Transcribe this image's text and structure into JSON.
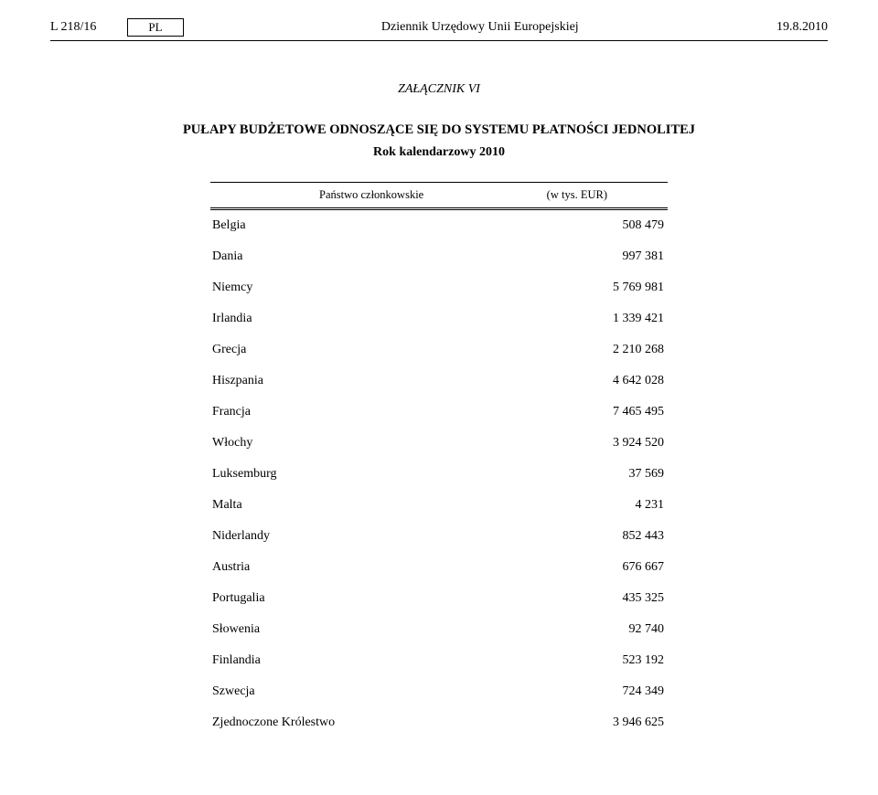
{
  "header": {
    "page_ref": "L 218/16",
    "lang": "PL",
    "journal_title": "Dziennik Urzędowy Unii Europejskiej",
    "date": "19.8.2010"
  },
  "annex": "ZAŁĄCZNIK VI",
  "title": "PUŁAPY BUDŻETOWE ODNOSZĄCE SIĘ DO SYSTEMU PŁATNOŚCI JEDNOLITEJ",
  "subtitle": "Rok kalendarzowy 2010",
  "table": {
    "col1": "Państwo członkowskie",
    "col2": "(w tys. EUR)",
    "rows": [
      {
        "label": "Belgia",
        "value": "508 479"
      },
      {
        "label": "Dania",
        "value": "997 381"
      },
      {
        "label": "Niemcy",
        "value": "5 769 981"
      },
      {
        "label": "Irlandia",
        "value": "1 339 421"
      },
      {
        "label": "Grecja",
        "value": "2 210 268"
      },
      {
        "label": "Hiszpania",
        "value": "4 642 028"
      },
      {
        "label": "Francja",
        "value": "7 465 495"
      },
      {
        "label": "Włochy",
        "value": "3 924 520"
      },
      {
        "label": "Luksemburg",
        "value": "37 569"
      },
      {
        "label": "Malta",
        "value": "4 231"
      },
      {
        "label": "Niderlandy",
        "value": "852 443"
      },
      {
        "label": "Austria",
        "value": "676 667"
      },
      {
        "label": "Portugalia",
        "value": "435 325"
      },
      {
        "label": "Słowenia",
        "value": "92 740"
      },
      {
        "label": "Finlandia",
        "value": "523 192"
      },
      {
        "label": "Szwecja",
        "value": "724 349"
      },
      {
        "label": "Zjednoczone Królestwo",
        "value": "3 946 625"
      }
    ]
  }
}
